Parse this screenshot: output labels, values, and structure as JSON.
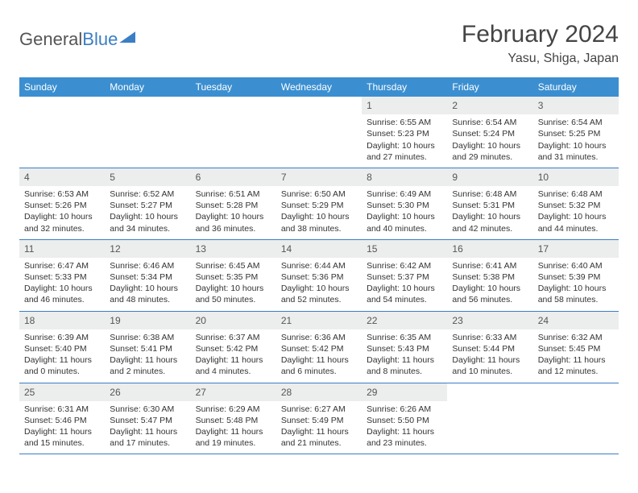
{
  "brand": {
    "part1": "General",
    "part2": "Blue"
  },
  "title": "February 2024",
  "location": "Yasu, Shiga, Japan",
  "colors": {
    "header_bg": "#3b8fd0",
    "header_text": "#ffffff",
    "daynum_bg": "#eceded",
    "border": "#3b7ec4",
    "text": "#333333"
  },
  "weekdays": [
    "Sunday",
    "Monday",
    "Tuesday",
    "Wednesday",
    "Thursday",
    "Friday",
    "Saturday"
  ],
  "weeks": [
    [
      null,
      null,
      null,
      null,
      {
        "n": "1",
        "sr": "Sunrise: 6:55 AM",
        "ss": "Sunset: 5:23 PM",
        "d1": "Daylight: 10 hours",
        "d2": "and 27 minutes."
      },
      {
        "n": "2",
        "sr": "Sunrise: 6:54 AM",
        "ss": "Sunset: 5:24 PM",
        "d1": "Daylight: 10 hours",
        "d2": "and 29 minutes."
      },
      {
        "n": "3",
        "sr": "Sunrise: 6:54 AM",
        "ss": "Sunset: 5:25 PM",
        "d1": "Daylight: 10 hours",
        "d2": "and 31 minutes."
      }
    ],
    [
      {
        "n": "4",
        "sr": "Sunrise: 6:53 AM",
        "ss": "Sunset: 5:26 PM",
        "d1": "Daylight: 10 hours",
        "d2": "and 32 minutes."
      },
      {
        "n": "5",
        "sr": "Sunrise: 6:52 AM",
        "ss": "Sunset: 5:27 PM",
        "d1": "Daylight: 10 hours",
        "d2": "and 34 minutes."
      },
      {
        "n": "6",
        "sr": "Sunrise: 6:51 AM",
        "ss": "Sunset: 5:28 PM",
        "d1": "Daylight: 10 hours",
        "d2": "and 36 minutes."
      },
      {
        "n": "7",
        "sr": "Sunrise: 6:50 AM",
        "ss": "Sunset: 5:29 PM",
        "d1": "Daylight: 10 hours",
        "d2": "and 38 minutes."
      },
      {
        "n": "8",
        "sr": "Sunrise: 6:49 AM",
        "ss": "Sunset: 5:30 PM",
        "d1": "Daylight: 10 hours",
        "d2": "and 40 minutes."
      },
      {
        "n": "9",
        "sr": "Sunrise: 6:48 AM",
        "ss": "Sunset: 5:31 PM",
        "d1": "Daylight: 10 hours",
        "d2": "and 42 minutes."
      },
      {
        "n": "10",
        "sr": "Sunrise: 6:48 AM",
        "ss": "Sunset: 5:32 PM",
        "d1": "Daylight: 10 hours",
        "d2": "and 44 minutes."
      }
    ],
    [
      {
        "n": "11",
        "sr": "Sunrise: 6:47 AM",
        "ss": "Sunset: 5:33 PM",
        "d1": "Daylight: 10 hours",
        "d2": "and 46 minutes."
      },
      {
        "n": "12",
        "sr": "Sunrise: 6:46 AM",
        "ss": "Sunset: 5:34 PM",
        "d1": "Daylight: 10 hours",
        "d2": "and 48 minutes."
      },
      {
        "n": "13",
        "sr": "Sunrise: 6:45 AM",
        "ss": "Sunset: 5:35 PM",
        "d1": "Daylight: 10 hours",
        "d2": "and 50 minutes."
      },
      {
        "n": "14",
        "sr": "Sunrise: 6:44 AM",
        "ss": "Sunset: 5:36 PM",
        "d1": "Daylight: 10 hours",
        "d2": "and 52 minutes."
      },
      {
        "n": "15",
        "sr": "Sunrise: 6:42 AM",
        "ss": "Sunset: 5:37 PM",
        "d1": "Daylight: 10 hours",
        "d2": "and 54 minutes."
      },
      {
        "n": "16",
        "sr": "Sunrise: 6:41 AM",
        "ss": "Sunset: 5:38 PM",
        "d1": "Daylight: 10 hours",
        "d2": "and 56 minutes."
      },
      {
        "n": "17",
        "sr": "Sunrise: 6:40 AM",
        "ss": "Sunset: 5:39 PM",
        "d1": "Daylight: 10 hours",
        "d2": "and 58 minutes."
      }
    ],
    [
      {
        "n": "18",
        "sr": "Sunrise: 6:39 AM",
        "ss": "Sunset: 5:40 PM",
        "d1": "Daylight: 11 hours",
        "d2": "and 0 minutes."
      },
      {
        "n": "19",
        "sr": "Sunrise: 6:38 AM",
        "ss": "Sunset: 5:41 PM",
        "d1": "Daylight: 11 hours",
        "d2": "and 2 minutes."
      },
      {
        "n": "20",
        "sr": "Sunrise: 6:37 AM",
        "ss": "Sunset: 5:42 PM",
        "d1": "Daylight: 11 hours",
        "d2": "and 4 minutes."
      },
      {
        "n": "21",
        "sr": "Sunrise: 6:36 AM",
        "ss": "Sunset: 5:42 PM",
        "d1": "Daylight: 11 hours",
        "d2": "and 6 minutes."
      },
      {
        "n": "22",
        "sr": "Sunrise: 6:35 AM",
        "ss": "Sunset: 5:43 PM",
        "d1": "Daylight: 11 hours",
        "d2": "and 8 minutes."
      },
      {
        "n": "23",
        "sr": "Sunrise: 6:33 AM",
        "ss": "Sunset: 5:44 PM",
        "d1": "Daylight: 11 hours",
        "d2": "and 10 minutes."
      },
      {
        "n": "24",
        "sr": "Sunrise: 6:32 AM",
        "ss": "Sunset: 5:45 PM",
        "d1": "Daylight: 11 hours",
        "d2": "and 12 minutes."
      }
    ],
    [
      {
        "n": "25",
        "sr": "Sunrise: 6:31 AM",
        "ss": "Sunset: 5:46 PM",
        "d1": "Daylight: 11 hours",
        "d2": "and 15 minutes."
      },
      {
        "n": "26",
        "sr": "Sunrise: 6:30 AM",
        "ss": "Sunset: 5:47 PM",
        "d1": "Daylight: 11 hours",
        "d2": "and 17 minutes."
      },
      {
        "n": "27",
        "sr": "Sunrise: 6:29 AM",
        "ss": "Sunset: 5:48 PM",
        "d1": "Daylight: 11 hours",
        "d2": "and 19 minutes."
      },
      {
        "n": "28",
        "sr": "Sunrise: 6:27 AM",
        "ss": "Sunset: 5:49 PM",
        "d1": "Daylight: 11 hours",
        "d2": "and 21 minutes."
      },
      {
        "n": "29",
        "sr": "Sunrise: 6:26 AM",
        "ss": "Sunset: 5:50 PM",
        "d1": "Daylight: 11 hours",
        "d2": "and 23 minutes."
      },
      null,
      null
    ]
  ]
}
